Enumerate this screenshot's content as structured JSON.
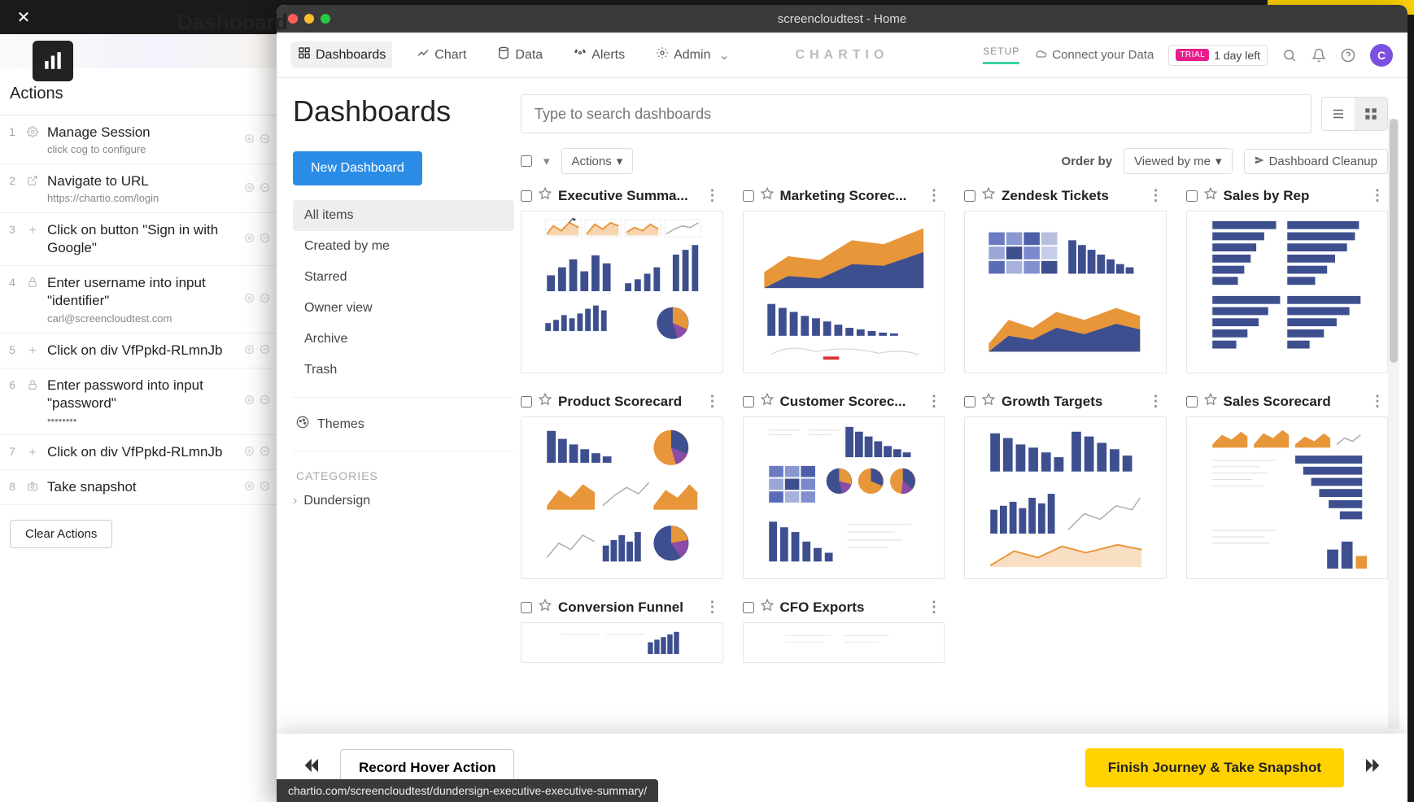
{
  "colors": {
    "yellow": "#ffd200",
    "blue": "#2b8ce6",
    "navy": "#3e4f8f",
    "orange": "#e8963a",
    "purple": "#7b4fe0",
    "pink": "#e91e8c",
    "green": "#3ad29f",
    "traffic_red": "#ff5f57",
    "traffic_yellow": "#febc2e",
    "traffic_green": "#28c840"
  },
  "outer": {
    "title": "Dashboard"
  },
  "actions": {
    "header": "Actions",
    "clear": "Clear Actions",
    "items": [
      {
        "n": "1",
        "title": "Manage Session",
        "sub": "click cog to configure",
        "icon": "gear"
      },
      {
        "n": "2",
        "title": "Navigate to URL",
        "sub": "https://chartio.com/login",
        "icon": "external"
      },
      {
        "n": "3",
        "title": "Click on button \"Sign in with Google\"",
        "sub": "",
        "icon": "plus"
      },
      {
        "n": "4",
        "title": "Enter username into input \"identifier\"",
        "sub": "carl@screencloudtest.com",
        "icon": "lock"
      },
      {
        "n": "5",
        "title": "Click on div VfPpkd-RLmnJb",
        "sub": "",
        "icon": "plus"
      },
      {
        "n": "6",
        "title": "Enter password into input \"password\"",
        "sub": "••••••••",
        "icon": "lock"
      },
      {
        "n": "7",
        "title": "Click on div VfPpkd-RLmnJb",
        "sub": "",
        "icon": "plus"
      },
      {
        "n": "8",
        "title": "Take snapshot",
        "sub": "",
        "icon": "camera"
      }
    ]
  },
  "window": {
    "title": "screencloudtest - Home"
  },
  "nav": {
    "items": [
      {
        "label": "Dashboards",
        "icon": "grid",
        "active": true
      },
      {
        "label": "Chart",
        "icon": "chart",
        "active": false
      },
      {
        "label": "Data",
        "icon": "db",
        "active": false
      },
      {
        "label": "Alerts",
        "icon": "alert",
        "active": false
      },
      {
        "label": "Admin",
        "icon": "gear",
        "active": false,
        "caret": true
      }
    ],
    "logo": "CHARTIO",
    "setup": "SETUP",
    "connect": "Connect your Data",
    "trial_tag": "TRIAL",
    "trial_text": "1 day left",
    "avatar": "C"
  },
  "page": {
    "title": "Dashboards",
    "new_btn": "New Dashboard",
    "search_placeholder": "Type to search dashboards",
    "filters": [
      "All items",
      "Created by me",
      "Starred",
      "Owner view",
      "Archive",
      "Trash"
    ],
    "themes": "Themes",
    "categories_label": "CATEGORIES",
    "categories": [
      "Dundersign"
    ],
    "actions_btn": "Actions",
    "orderby": "Order by",
    "orderby_sel": "Viewed by me",
    "cleanup": "Dashboard Cleanup"
  },
  "dashboards": [
    {
      "title": "Executive Summa...",
      "thumb": "exec"
    },
    {
      "title": "Marketing Scorec...",
      "thumb": "marketing"
    },
    {
      "title": "Zendesk Tickets",
      "thumb": "zendesk"
    },
    {
      "title": "Sales by Rep",
      "thumb": "salesrep"
    },
    {
      "title": "Product Scorecard",
      "thumb": "product"
    },
    {
      "title": "Customer Scorec...",
      "thumb": "customer"
    },
    {
      "title": "Growth Targets",
      "thumb": "growth"
    },
    {
      "title": "Sales Scorecard",
      "thumb": "salesscore"
    },
    {
      "title": "Conversion Funnel",
      "thumb": "funnel"
    },
    {
      "title": "CFO Exports",
      "thumb": "cfo"
    }
  ],
  "footer": {
    "record": "Record Hover Action",
    "finish": "Finish Journey & Take Snapshot",
    "url": "chartio.com/screencloudtest/dundersign-executive-executive-summary/"
  },
  "thumbs": {
    "navy": "#3e4f8f",
    "orange": "#e8963a",
    "purple": "#8b4ba8",
    "grid": "#e6e6e6"
  }
}
